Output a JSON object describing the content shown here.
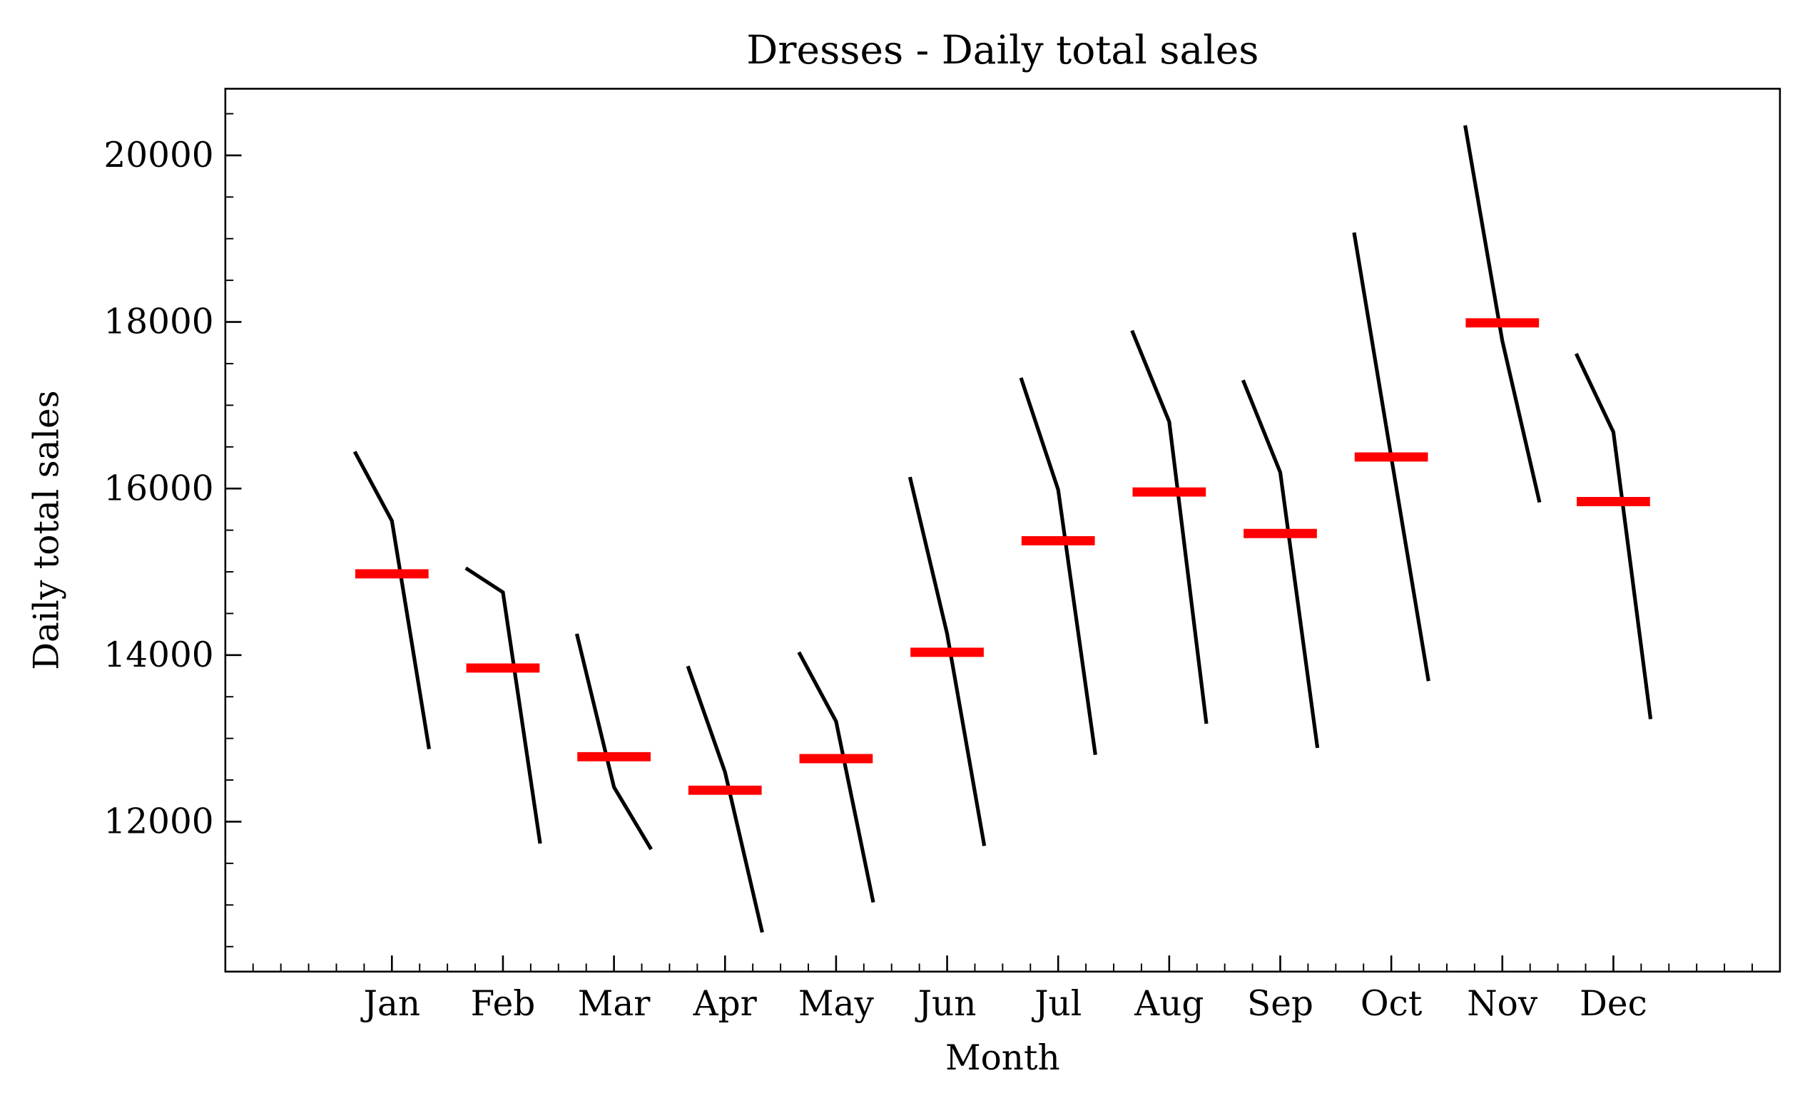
{
  "chart_data": {
    "type": "month_plot",
    "title": "Dresses - Daily total sales",
    "xlabel": "Month",
    "ylabel": "Daily total sales",
    "categories": [
      "Jan",
      "Feb",
      "Mar",
      "Apr",
      "May",
      "Jun",
      "Jul",
      "Aug",
      "Sep",
      "Oct",
      "Nov",
      "Dec"
    ],
    "values": [
      [
        16443,
        15612,
        12872
      ],
      [
        15045,
        14754,
        11737
      ],
      [
        14256,
        12415,
        11668
      ],
      [
        13868,
        12595,
        10671
      ],
      [
        14035,
        13204,
        11031
      ],
      [
        16138,
        14256,
        11709
      ],
      [
        17329,
        15986,
        12803
      ],
      [
        17896,
        16803,
        13176
      ],
      [
        17301,
        16194,
        12886
      ],
      [
        19073,
        16374,
        13689
      ],
      [
        20360,
        17772,
        15834
      ],
      [
        17619,
        16678,
        13232
      ]
    ],
    "means": [
      14976,
      13845,
      12780,
      12378,
      12757,
      14034,
      15373,
      15958,
      15460,
      16379,
      17989,
      15843
    ],
    "color": "#000000",
    "mean_color": "#ff0000",
    "ylim": [
      10200,
      20800
    ],
    "yticks": [
      12000,
      14000,
      16000,
      18000,
      20000
    ],
    "yminorticks": [
      10500,
      11000,
      11500,
      12500,
      13000,
      13500,
      14500,
      15000,
      15500,
      16500,
      17000,
      17500,
      18500,
      19000,
      19500,
      20500
    ]
  }
}
